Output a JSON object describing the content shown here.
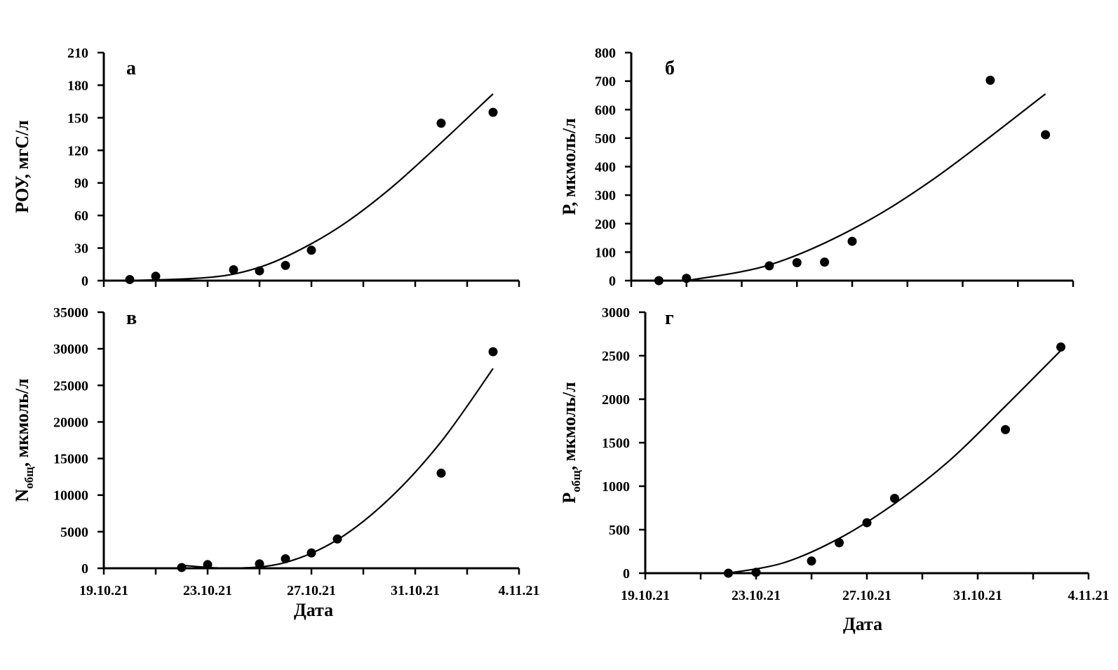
{
  "chart_data": [
    {
      "panel": "a",
      "type": "scatter",
      "xlabel": "",
      "ylabel": "РОУ, мгС/л",
      "ylim": [
        0,
        210
      ],
      "yticks": [
        "0",
        "30",
        "60",
        "90",
        "120",
        "150",
        "180",
        "210"
      ],
      "xlim": [
        "2021-10-19",
        "2021-11-04"
      ],
      "xticks": [],
      "points": [
        {
          "x": "2021-10-20",
          "y": 1
        },
        {
          "x": "2021-10-21",
          "y": 4
        },
        {
          "x": "2021-10-24",
          "y": 10
        },
        {
          "x": "2021-10-25",
          "y": 9
        },
        {
          "x": "2021-10-26",
          "y": 14
        },
        {
          "x": "2021-10-27",
          "y": 28
        },
        {
          "x": "2021-11-01",
          "y": 145
        },
        {
          "x": "2021-11-03",
          "y": 155
        }
      ],
      "trendline": {
        "type": "polynomial",
        "order": 2,
        "curve": [
          {
            "x": "2021-10-20",
            "y": 0
          },
          {
            "x": "2021-10-24",
            "y": 6
          },
          {
            "x": "2021-10-27",
            "y": 34
          },
          {
            "x": "2021-10-30",
            "y": 84
          },
          {
            "x": "2021-11-03",
            "y": 172
          }
        ]
      }
    },
    {
      "panel": "б",
      "type": "scatter",
      "xlabel": "",
      "ylabel": "Р, мкмоль/л",
      "ylim": [
        0,
        800
      ],
      "yticks": [
        "0",
        "100",
        "200",
        "300",
        "400",
        "500",
        "600",
        "700",
        "800"
      ],
      "xlim": [
        "2021-10-19",
        "2021-11-04"
      ],
      "xticks": [],
      "points": [
        {
          "x": "2021-10-20",
          "y": 0
        },
        {
          "x": "2021-10-21",
          "y": 8
        },
        {
          "x": "2021-10-24",
          "y": 52
        },
        {
          "x": "2021-10-25",
          "y": 63
        },
        {
          "x": "2021-10-26",
          "y": 65
        },
        {
          "x": "2021-10-27",
          "y": 138
        },
        {
          "x": "2021-11-01",
          "y": 703
        },
        {
          "x": "2021-11-03",
          "y": 512
        }
      ],
      "trendline": {
        "type": "polynomial",
        "order": 2,
        "curve": [
          {
            "x": "2021-10-21",
            "y": 0
          },
          {
            "x": "2021-10-24",
            "y": 55
          },
          {
            "x": "2021-10-27",
            "y": 180
          },
          {
            "x": "2021-10-30",
            "y": 360
          },
          {
            "x": "2021-11-03",
            "y": 655
          }
        ]
      }
    },
    {
      "panel": "в",
      "type": "scatter",
      "xlabel": "Дата",
      "ylabel_main": "N",
      "ylabel_sub": "общ",
      "ylabel_rest": ", мкмоль/л",
      "ylim": [
        0,
        35000
      ],
      "yticks": [
        "0",
        "5000",
        "10000",
        "15000",
        "20000",
        "25000",
        "30000",
        "35000"
      ],
      "xlim": [
        "2021-10-19",
        "2021-11-04"
      ],
      "xticks": [
        "19.10.21",
        "23.10.21",
        "27.10.21",
        "31.10.21",
        "4.11.21"
      ],
      "points": [
        {
          "x": "2021-10-22",
          "y": 100
        },
        {
          "x": "2021-10-23",
          "y": 500
        },
        {
          "x": "2021-10-25",
          "y": 600
        },
        {
          "x": "2021-10-26",
          "y": 1300
        },
        {
          "x": "2021-10-27",
          "y": 2100
        },
        {
          "x": "2021-10-28",
          "y": 4000
        },
        {
          "x": "2021-11-01",
          "y": 13000
        },
        {
          "x": "2021-11-03",
          "y": 29600
        }
      ],
      "trendline": {
        "type": "polynomial",
        "order": 3,
        "curve": [
          {
            "x": "2021-10-22",
            "y": 400
          },
          {
            "x": "2021-10-24",
            "y": 0
          },
          {
            "x": "2021-10-26",
            "y": 800
          },
          {
            "x": "2021-10-28",
            "y": 3900
          },
          {
            "x": "2021-10-30",
            "y": 9500
          },
          {
            "x": "2021-11-01",
            "y": 17300
          },
          {
            "x": "2021-11-03",
            "y": 27300
          }
        ]
      }
    },
    {
      "panel": "г",
      "type": "scatter",
      "xlabel": "Дата",
      "ylabel_main": "Р",
      "ylabel_sub": "общ",
      "ylabel_rest": ", мкмоль/л",
      "ylim": [
        0,
        3000
      ],
      "yticks": [
        "0",
        "500",
        "1000",
        "1500",
        "2000",
        "2500",
        "3000"
      ],
      "xlim": [
        "2021-10-19",
        "2021-11-04"
      ],
      "xticks": [
        "19.10.21",
        "23.10.21",
        "27.10.21",
        "31.10.21",
        "4.11.21"
      ],
      "points": [
        {
          "x": "2021-10-22",
          "y": 0
        },
        {
          "x": "2021-10-23",
          "y": 10
        },
        {
          "x": "2021-10-25",
          "y": 140
        },
        {
          "x": "2021-10-26",
          "y": 350
        },
        {
          "x": "2021-10-27",
          "y": 580
        },
        {
          "x": "2021-10-28",
          "y": 860
        },
        {
          "x": "2021-11-01",
          "y": 1650
        },
        {
          "x": "2021-11-03",
          "y": 2600
        }
      ],
      "trendline": {
        "type": "polynomial",
        "order": 2,
        "curve": [
          {
            "x": "2021-10-22",
            "y": 0
          },
          {
            "x": "2021-10-24",
            "y": 120
          },
          {
            "x": "2021-10-26",
            "y": 400
          },
          {
            "x": "2021-10-28",
            "y": 800
          },
          {
            "x": "2021-10-30",
            "y": 1300
          },
          {
            "x": "2021-11-01",
            "y": 1920
          },
          {
            "x": "2021-11-03",
            "y": 2560
          }
        ]
      }
    }
  ]
}
